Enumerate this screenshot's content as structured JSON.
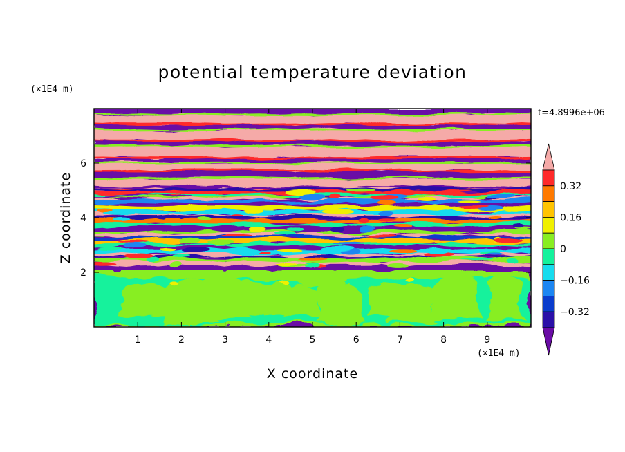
{
  "chart_data": {
    "type": "heatmap",
    "title": "potential temperature deviation",
    "xlabel": "X coordinate",
    "ylabel": "Z coordinate",
    "x_unit": "(×1E4 m)",
    "y_unit": "(×1E4 m)",
    "time_label": "t=4.8996e+06",
    "xlim": [
      0,
      10
    ],
    "ylim": [
      0,
      8
    ],
    "x_ticks": [
      "1",
      "2",
      "3",
      "4",
      "5",
      "6",
      "7",
      "8",
      "9"
    ],
    "y_ticks": [
      "2",
      "4",
      "6"
    ],
    "colorbar": {
      "min": -0.4,
      "max": 0.4,
      "step": 0.08,
      "extend": "both",
      "tick_labels": [
        "0.32",
        "0.16",
        "0",
        "−0.16",
        "−0.32"
      ],
      "colors": [
        "#6a0ca6",
        "#2a10a8",
        "#0a3ccc",
        "#1c86f2",
        "#16dcee",
        "#14f29c",
        "#88ee22",
        "#f0f000",
        "#ffc400",
        "#ff7a00",
        "#ff2a2a",
        "#f5aaa8"
      ]
    },
    "field_regions": [
      {
        "z_range": [
          0,
          2.1
        ],
        "pattern": "mixed layer",
        "dominant_levels": [
          "0",
          "0.08"
        ]
      },
      {
        "z_range": [
          2.1,
          5.2
        ],
        "pattern": "turbulent thin layers",
        "dominant_levels": [
          "-0.4",
          "0.4",
          "-0.32",
          "0.32"
        ]
      },
      {
        "z_range": [
          5.2,
          8
        ],
        "pattern": "alternating stratified bands",
        "dominant_levels": [
          "-0.4",
          "0.4"
        ]
      }
    ]
  }
}
